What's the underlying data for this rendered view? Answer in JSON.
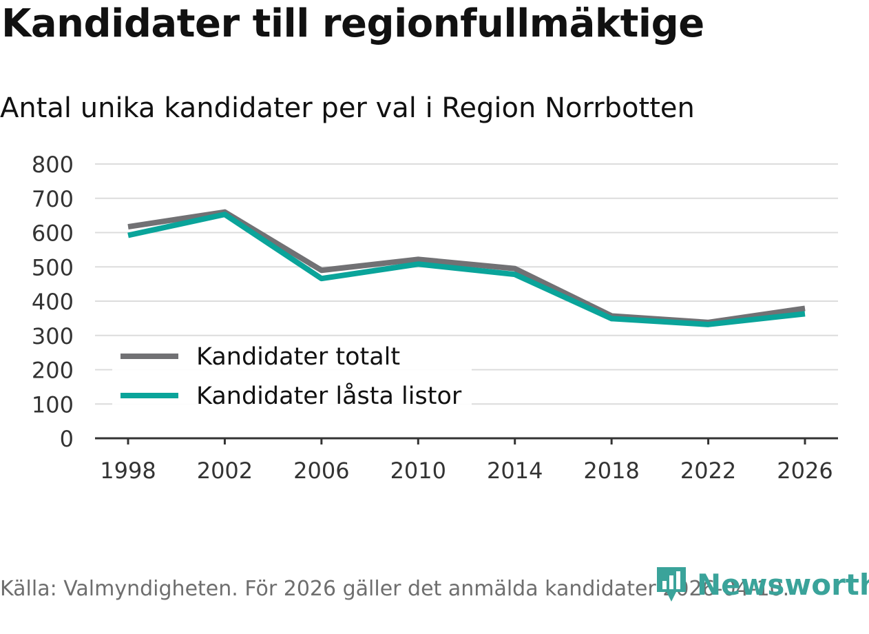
{
  "header": {
    "title": "Kandidater till regionfullmäktige",
    "subtitle": "Antal unika kandidater per val i Region Norrbotten"
  },
  "footer": {
    "source": "Källa: Valmyndigheten. För 2026 gäller det anmälda kandidater 2026-04-10.",
    "brand": "Newsworthy"
  },
  "colors": {
    "total": "#717174",
    "locked": "#0aa49a",
    "brand": "#3aa39a"
  },
  "chart_data": {
    "type": "line",
    "title": "Kandidater till regionfullmäktige",
    "subtitle": "Antal unika kandidater per val i Region Norrbotten",
    "xlabel": "",
    "ylabel": "",
    "ylim": [
      0,
      800
    ],
    "y_ticks": [
      "0",
      "100",
      "200",
      "300",
      "400",
      "500",
      "600",
      "700",
      "800"
    ],
    "categories": [
      "1998",
      "2002",
      "2006",
      "2010",
      "2014",
      "2018",
      "2022",
      "2026"
    ],
    "legend_position": "lower-left",
    "grid": true,
    "series": [
      {
        "name": "Kandidater totalt",
        "values": [
          617,
          660,
          490,
          522,
          495,
          357,
          338,
          379
        ]
      },
      {
        "name": "Kandidater låsta listor",
        "values": [
          592,
          653,
          466,
          508,
          478,
          349,
          332,
          363
        ]
      }
    ]
  }
}
